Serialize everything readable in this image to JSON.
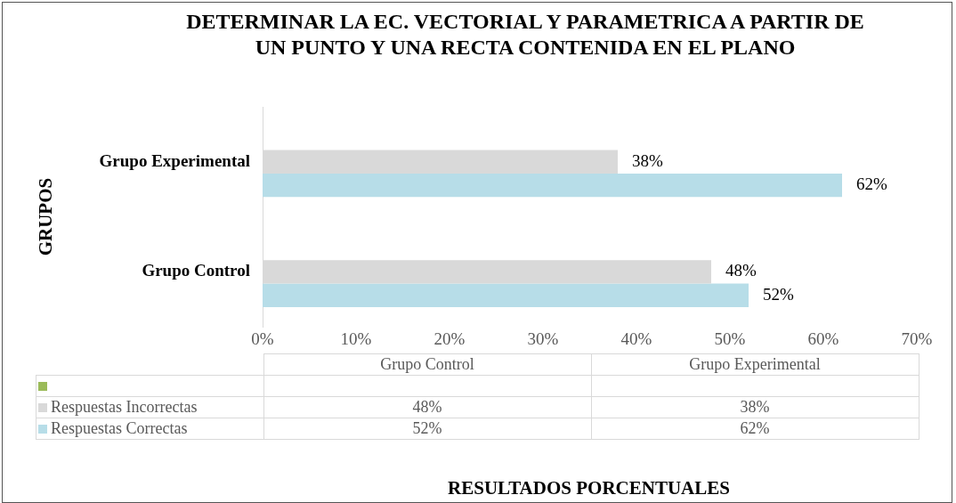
{
  "chart_data": {
    "type": "bar",
    "orientation": "horizontal",
    "title": "DETERMINAR LA EC. VECTORIAL Y PARAMETRICA A PARTIR DE UN PUNTO Y UNA RECTA CONTENIDA EN EL PLANO",
    "annotations": [
      "RESULTADOS PORCENTUALES"
    ],
    "ylabel": "GRUPOS",
    "categories": [
      "Grupo Experimental",
      "Grupo Control"
    ],
    "series": [
      {
        "color": "#9bbb59",
        "values": [
          null,
          null
        ]
      },
      {
        "name": "Respuestas Incorrectas",
        "color": "#d9d9d9",
        "values": [
          38,
          48
        ],
        "value_labels": [
          "38%",
          "48%"
        ]
      },
      {
        "name": "Respuestas Correctas",
        "color": "#b7dde8",
        "values": [
          62,
          52
        ],
        "value_labels": [
          "62%",
          "52%"
        ]
      }
    ],
    "xlim": [
      0,
      70
    ],
    "xticks": [
      {
        "value": 0,
        "label": "0%"
      },
      {
        "value": 10,
        "label": "10%"
      },
      {
        "value": 20,
        "label": "20%"
      },
      {
        "value": 30,
        "label": "30%"
      },
      {
        "value": 40,
        "label": "40%"
      },
      {
        "value": 50,
        "label": "50%"
      },
      {
        "value": 60,
        "label": "60%"
      },
      {
        "value": 70,
        "label": "70%"
      }
    ],
    "grid": false,
    "legend": "bottom"
  }
}
